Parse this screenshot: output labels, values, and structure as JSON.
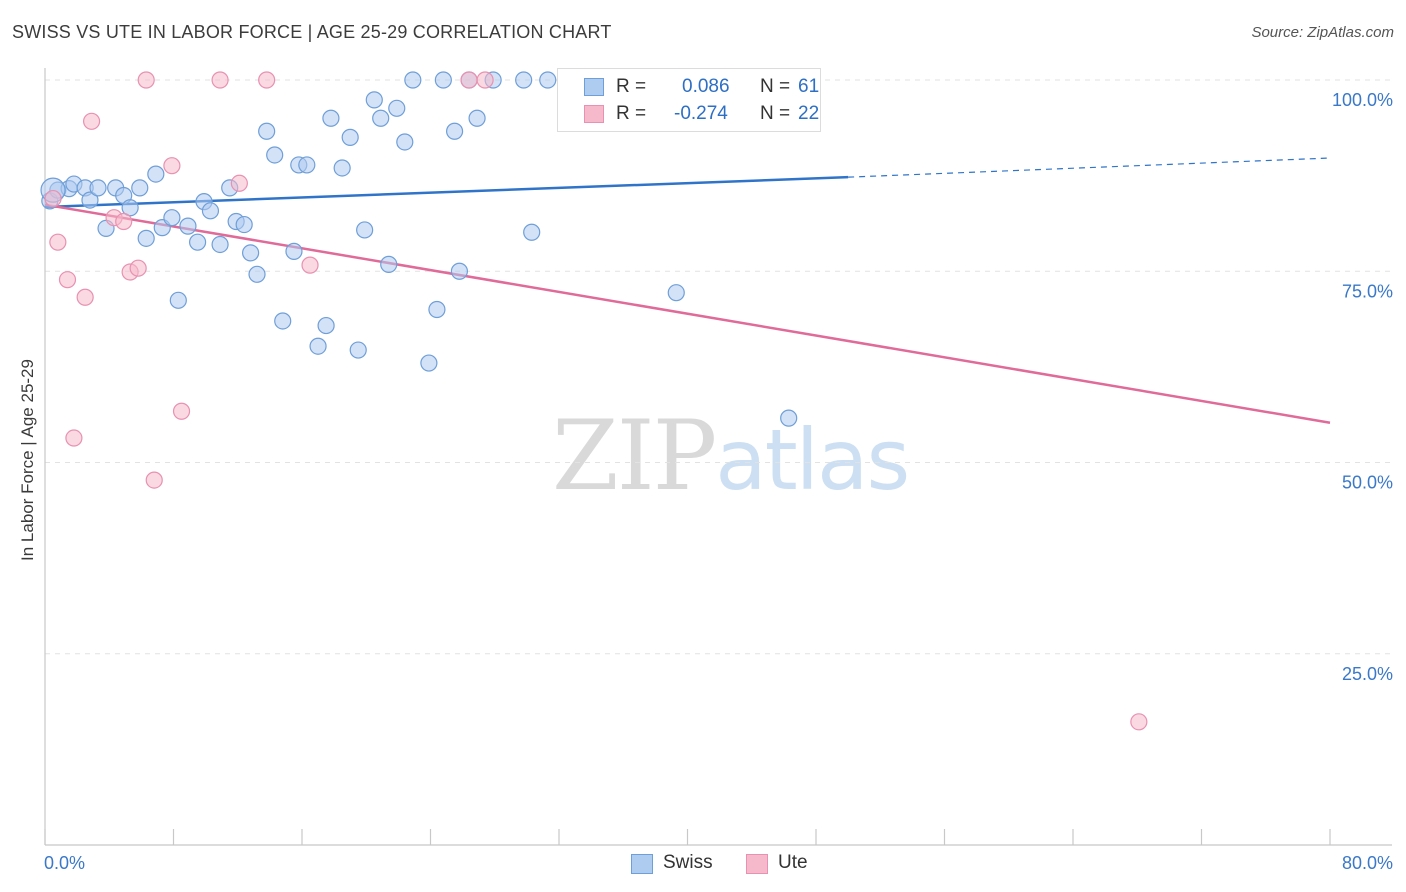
{
  "title": "SWISS VS UTE IN LABOR FORCE | AGE 25-29 CORRELATION CHART",
  "source": "Source: ZipAtlas.com",
  "watermark": {
    "zip": "ZIP",
    "atlas": "atlas"
  },
  "colors": {
    "swiss_fill": "#aecbf0",
    "swiss_stroke": "#6f9fd8",
    "swiss_line": "#2f74c9",
    "ute_fill": "#f6b9cc",
    "ute_stroke": "#e891b0",
    "ute_line": "#e06a98",
    "tick_label": "#3a78c8",
    "grid": "#e2e2e2"
  },
  "legend": {
    "swiss": {
      "r_label": "R =",
      "r_value": "0.086",
      "n_label": "N =",
      "n_value": "61"
    },
    "ute": {
      "r_label": "R =",
      "r_value": "-0.274",
      "n_label": "N =",
      "n_value": "22"
    }
  },
  "bottom_legend": {
    "swiss": "Swiss",
    "ute": "Ute"
  },
  "chart_data": {
    "type": "scatter",
    "title": "SWISS VS UTE IN LABOR FORCE | AGE 25-29 CORRELATION CHART",
    "xlabel": "",
    "ylabel": "In Labor Force | Age 25-29",
    "xlim": [
      0,
      80
    ],
    "ylim": [
      0,
      100
    ],
    "x_tick_labels": [
      "0.0%",
      "80.0%"
    ],
    "y_ticks": [
      {
        "value": 100,
        "label": "100.0%"
      },
      {
        "value": 75,
        "label": "75.0%"
      },
      {
        "value": 50,
        "label": "50.0%"
      },
      {
        "value": 25,
        "label": "25.0%"
      }
    ],
    "grid": true,
    "legend_position": "top-center",
    "series": [
      {
        "name": "Swiss",
        "r": 0.086,
        "n": 61,
        "trend": {
          "x0": 0,
          "y0": 83.4,
          "x1": 50,
          "y1": 87.3,
          "dash_to_x": 80,
          "dash_to_y": 89.8
        },
        "points": [
          [
            0.3,
            84.2
          ],
          [
            0.8,
            85.6
          ],
          [
            1.5,
            85.8
          ],
          [
            1.8,
            86.4
          ],
          [
            2.5,
            85.9
          ],
          [
            2.8,
            84.3
          ],
          [
            3.3,
            85.9
          ],
          [
            3.8,
            80.6
          ],
          [
            4.4,
            85.9
          ],
          [
            4.9,
            84.9
          ],
          [
            5.3,
            83.3
          ],
          [
            5.9,
            85.9
          ],
          [
            6.3,
            79.3
          ],
          [
            6.9,
            87.7
          ],
          [
            7.3,
            80.7
          ],
          [
            7.9,
            82.0
          ],
          [
            8.3,
            71.2
          ],
          [
            8.9,
            80.9
          ],
          [
            9.5,
            78.8
          ],
          [
            9.9,
            84.1
          ],
          [
            10.3,
            82.9
          ],
          [
            10.9,
            78.5
          ],
          [
            11.5,
            85.9
          ],
          [
            11.9,
            81.5
          ],
          [
            12.4,
            81.1
          ],
          [
            12.8,
            77.4
          ],
          [
            13.2,
            74.6
          ],
          [
            13.8,
            93.3
          ],
          [
            14.3,
            90.2
          ],
          [
            14.8,
            68.5
          ],
          [
            15.5,
            77.6
          ],
          [
            15.8,
            88.9
          ],
          [
            16.3,
            88.9
          ],
          [
            17.0,
            65.2
          ],
          [
            17.5,
            67.9
          ],
          [
            17.8,
            95.0
          ],
          [
            18.5,
            88.5
          ],
          [
            19.0,
            92.5
          ],
          [
            19.5,
            64.7
          ],
          [
            19.9,
            80.4
          ],
          [
            20.5,
            97.4
          ],
          [
            20.9,
            95.0
          ],
          [
            21.4,
            75.9
          ],
          [
            21.9,
            96.3
          ],
          [
            22.4,
            91.9
          ],
          [
            22.9,
            100.0
          ],
          [
            23.9,
            63.0
          ],
          [
            24.4,
            70.0
          ],
          [
            24.8,
            100.0
          ],
          [
            25.5,
            93.3
          ],
          [
            25.8,
            75.0
          ],
          [
            26.4,
            100.0
          ],
          [
            26.9,
            95.0
          ],
          [
            27.9,
            100.0
          ],
          [
            29.8,
            100.0
          ],
          [
            30.3,
            80.1
          ],
          [
            31.3,
            100.0
          ],
          [
            35.8,
            100.0
          ],
          [
            39.3,
            72.2
          ],
          [
            46.3,
            55.8
          ],
          [
            0.5,
            85.6
          ]
        ]
      },
      {
        "name": "Ute",
        "r": -0.274,
        "n": 22,
        "trend": {
          "x0": 0,
          "y0": 83.7,
          "x1": 80,
          "y1": 55.2
        },
        "points": [
          [
            0.5,
            84.5
          ],
          [
            0.8,
            78.8
          ],
          [
            1.4,
            73.9
          ],
          [
            1.8,
            53.2
          ],
          [
            2.5,
            71.6
          ],
          [
            2.9,
            94.6
          ],
          [
            4.3,
            82.0
          ],
          [
            4.9,
            81.5
          ],
          [
            5.3,
            74.9
          ],
          [
            5.8,
            75.4
          ],
          [
            6.3,
            100.0
          ],
          [
            6.8,
            47.7
          ],
          [
            7.9,
            88.8
          ],
          [
            8.5,
            56.7
          ],
          [
            10.9,
            100.0
          ],
          [
            12.1,
            86.5
          ],
          [
            13.8,
            100.0
          ],
          [
            16.5,
            75.8
          ],
          [
            26.4,
            100.0
          ],
          [
            27.4,
            100.0
          ],
          [
            45.4,
            100.0
          ],
          [
            68.1,
            16.1
          ]
        ]
      }
    ]
  }
}
